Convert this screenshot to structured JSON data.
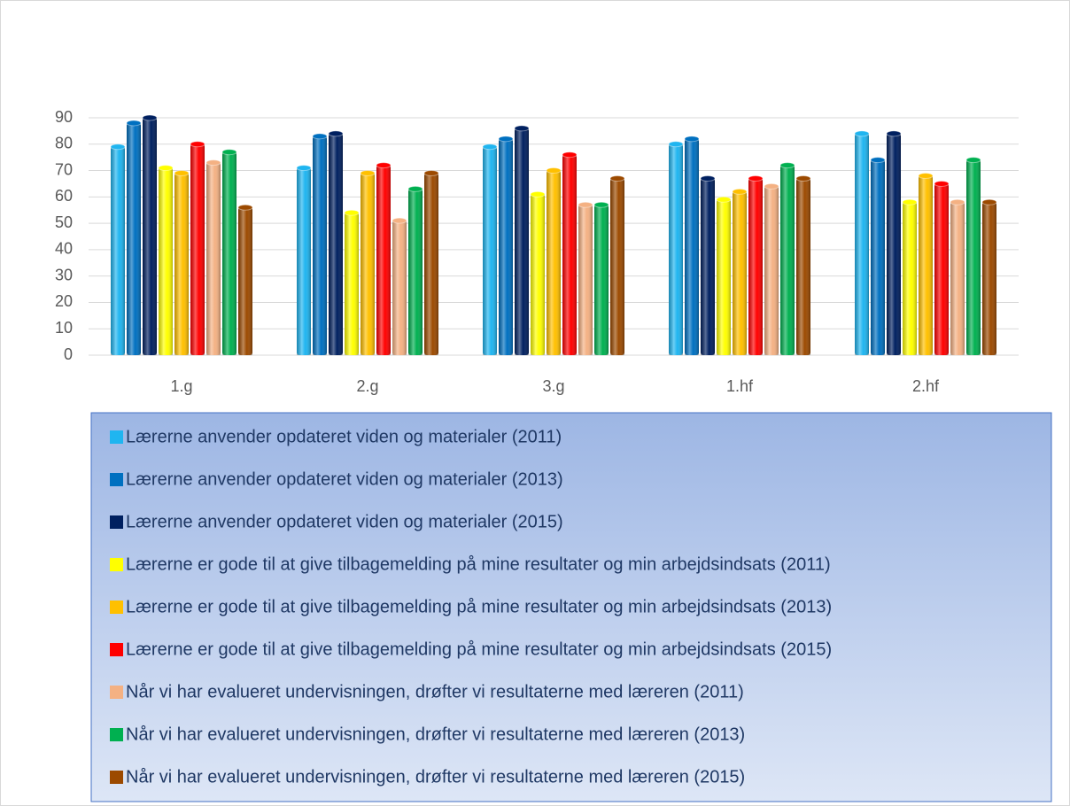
{
  "chart_data": {
    "type": "bar",
    "categories": [
      "1.g",
      "2.g",
      "3.g",
      "1.hf",
      "2.hf"
    ],
    "series": [
      {
        "name": "Lærerne anvender opdateret viden og materialer (2011)",
        "color": "#1fb5f0",
        "values": [
          79,
          71,
          79,
          80,
          84
        ]
      },
      {
        "name": "Lærerne anvender opdateret viden og materialer (2013)",
        "color": "#0070c0",
        "values": [
          88,
          83,
          82,
          82,
          74
        ]
      },
      {
        "name": "Lærerne anvender opdateret viden og materialer (2015)",
        "color": "#002060",
        "values": [
          90,
          84,
          86,
          67,
          84
        ]
      },
      {
        "name": "Lærerne er gode til at give tilbagemelding på mine resultater og min arbejdsindsats (2011)",
        "color": "#ffff00",
        "values": [
          71,
          54,
          61,
          59,
          58
        ]
      },
      {
        "name": "Lærerne er gode til at give tilbagemelding på mine resultater og min arbejdsindsats (2013)",
        "color": "#ffc000",
        "values": [
          69,
          69,
          70,
          62,
          68
        ]
      },
      {
        "name": "Lærerne er gode til at give tilbagemelding på mine resultater og min arbejdsindsats (2015)",
        "color": "#ff0000",
        "values": [
          80,
          72,
          76,
          67,
          65
        ]
      },
      {
        "name": "Når vi har evalueret undervisningen, drøfter vi resultaterne med læreren (2011)",
        "color": "#f4b183",
        "values": [
          73,
          51,
          57,
          64,
          58
        ]
      },
      {
        "name": "Når vi har evalueret undervisningen, drøfter vi resultaterne med læreren (2013)",
        "color": "#00b050",
        "values": [
          77,
          63,
          57,
          72,
          74
        ]
      },
      {
        "name": "Når vi har evalueret undervisningen, drøfter vi resultaterne med læreren (2015)",
        "color": "#9c4a00",
        "values": [
          56,
          69,
          67,
          67,
          58
        ]
      }
    ],
    "ylim": [
      0,
      90
    ],
    "yticks": [
      0,
      10,
      20,
      30,
      40,
      50,
      60,
      70,
      80,
      90
    ],
    "grid": true,
    "legend": "bottom"
  }
}
